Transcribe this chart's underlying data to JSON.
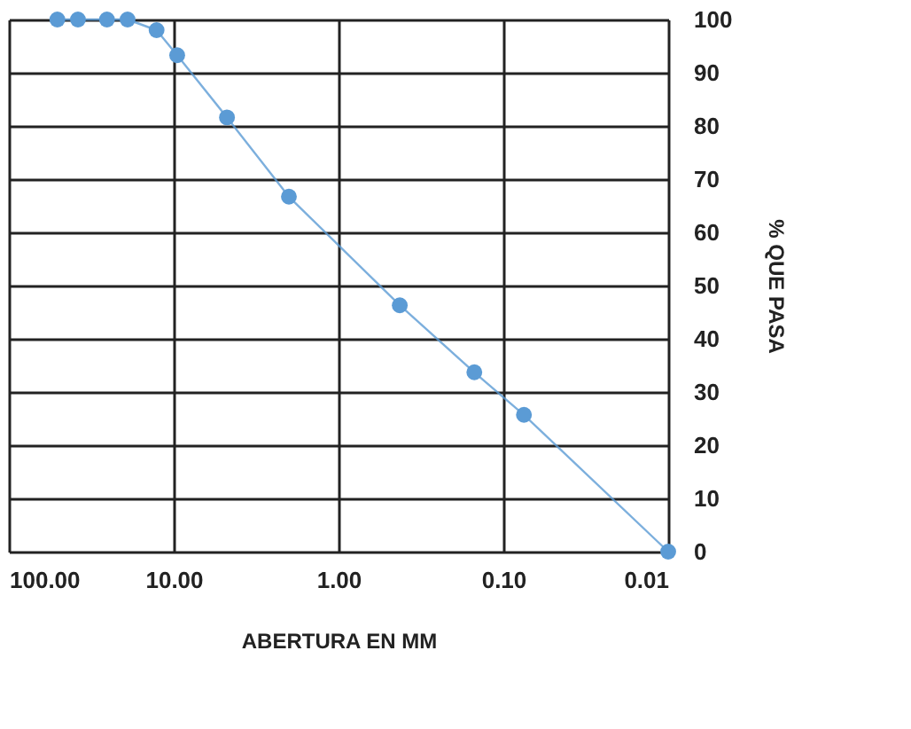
{
  "chart_data": {
    "type": "line",
    "xlabel": "ABERTURA EN MM",
    "ylabel": "% QUE PASA",
    "x": [
      50.8,
      38.1,
      25.4,
      19.05,
      12.7,
      9.525,
      4.75,
      2.0,
      0.425,
      0.15,
      0.075,
      0.01
    ],
    "series": [
      {
        "color": "#5b9bd5",
        "values": [
          100,
          100,
          100,
          100,
          98,
          93.3,
          81.6,
          66.7,
          46.3,
          33.7,
          25.7,
          0
        ]
      }
    ],
    "log": "x",
    "xlim": [
      100,
      0.01
    ],
    "ylim": [
      0,
      100
    ],
    "xticks": [
      {
        "value": 100,
        "label": "100.00"
      },
      {
        "value": 10,
        "label": "10.00"
      },
      {
        "value": 1,
        "label": "1.00"
      },
      {
        "value": 0.1,
        "label": "0.10"
      },
      {
        "value": 0.01,
        "label": "0.01"
      }
    ],
    "yticks": [
      0,
      10,
      20,
      30,
      40,
      50,
      60,
      70,
      80,
      90,
      100
    ],
    "grid": true,
    "marker": "circle",
    "line_style": "solid"
  }
}
